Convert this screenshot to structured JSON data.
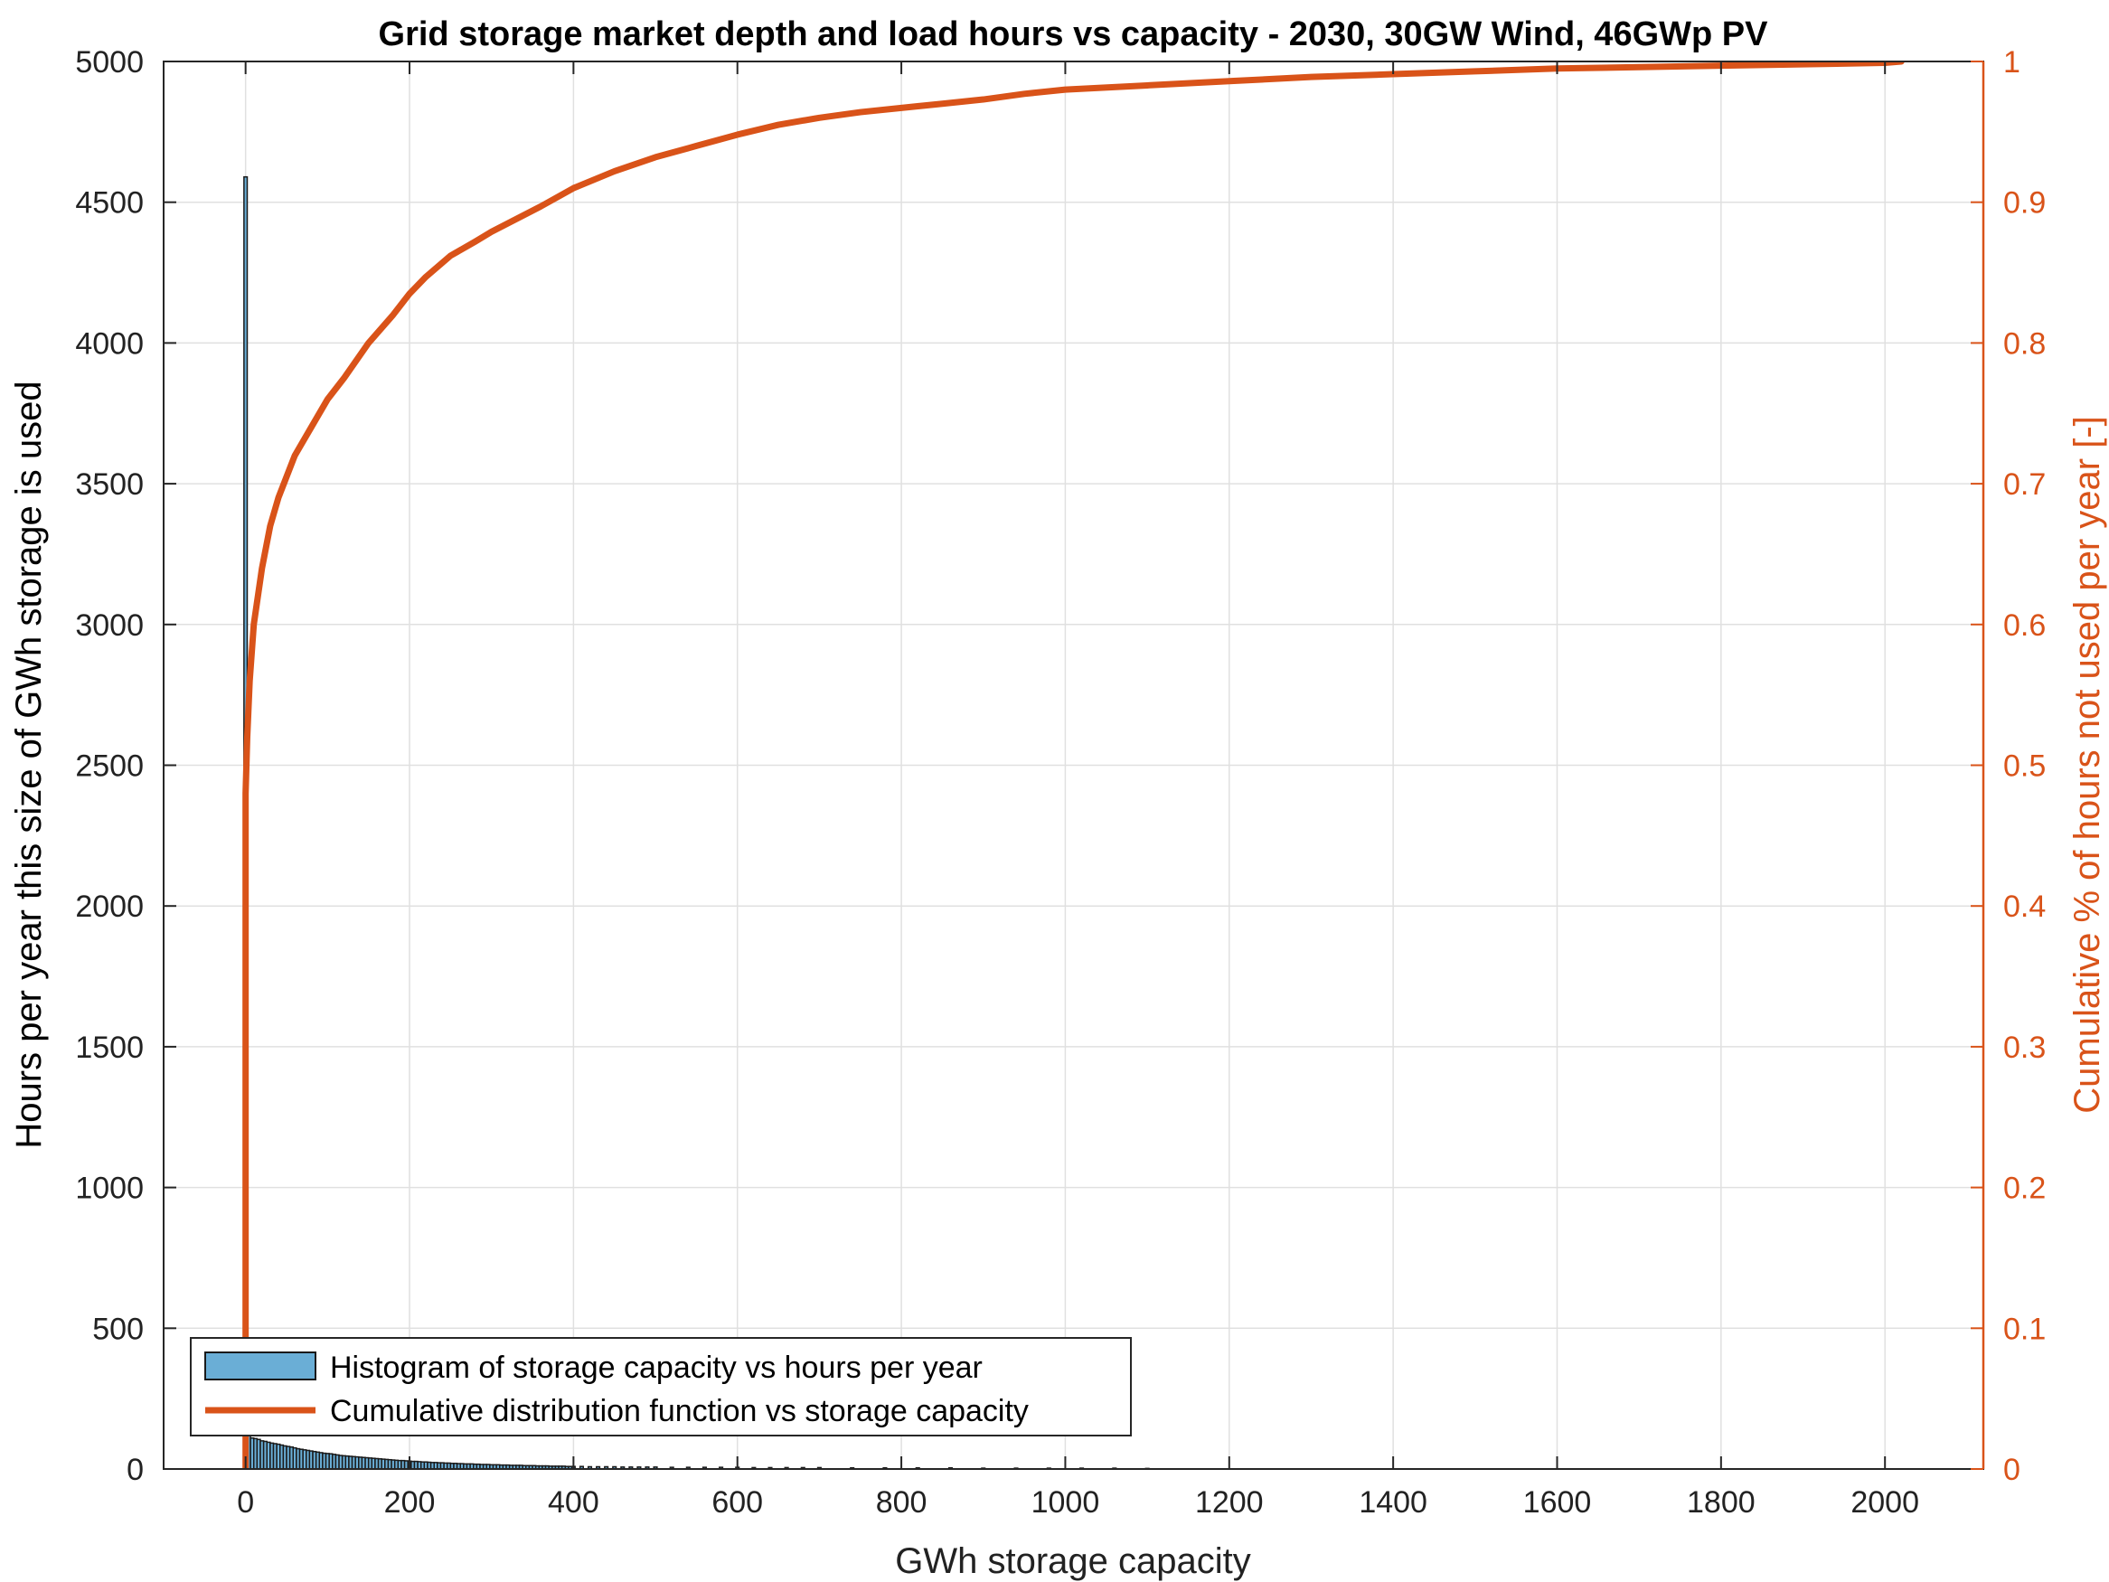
{
  "chart_data": {
    "type": "bar",
    "title": "Grid storage market depth and load hours vs capacity - 2030, 30GW Wind, 46GWp PV",
    "xlabel": "GWh storage capacity",
    "ylabel": "Hours per year this size of GWh storage is used",
    "ylabel_right": "Cumulative % of hours not used per year [-]",
    "xlim": [
      -100,
      2120
    ],
    "ylim": [
      0,
      5000
    ],
    "ylim_right": [
      0,
      1
    ],
    "grid": true,
    "legend_position": "bottom-left",
    "x_ticks": [
      "0",
      "200",
      "400",
      "600",
      "800",
      "1000",
      "1200",
      "1400",
      "1600",
      "1800",
      "2000"
    ],
    "x_tick_values": [
      0,
      200,
      400,
      600,
      800,
      1000,
      1200,
      1400,
      1600,
      1800,
      2000
    ],
    "y_ticks": [
      "0",
      "500",
      "1000",
      "1500",
      "2000",
      "2500",
      "3000",
      "3500",
      "4000",
      "4500",
      "5000"
    ],
    "y_tick_values": [
      0,
      500,
      1000,
      1500,
      2000,
      2500,
      3000,
      3500,
      4000,
      4500,
      5000
    ],
    "y_ticks_right": [
      "0",
      "0.1",
      "0.2",
      "0.3",
      "0.4",
      "0.5",
      "0.6",
      "0.7",
      "0.8",
      "0.9",
      "1"
    ],
    "y_tick_values_right": [
      0,
      0.1,
      0.2,
      0.3,
      0.4,
      0.5,
      0.6,
      0.7,
      0.8,
      0.9,
      1
    ],
    "colors": {
      "histogram_fill": "#6aaed6",
      "histogram_edge": "#1a1a1a",
      "cdf_line": "#d95319",
      "grid": "#e0e0e0",
      "axis": "#262626"
    },
    "series": [
      {
        "name": "Histogram of storage capacity vs hours per year",
        "type": "histogram",
        "bin_width": 4,
        "x": [
          0,
          4,
          8,
          12,
          16,
          20,
          24,
          28,
          32,
          36,
          40,
          44,
          48,
          52,
          56,
          60,
          64,
          68,
          72,
          76,
          80,
          84,
          88,
          92,
          96,
          100,
          104,
          108,
          112,
          116,
          120,
          124,
          128,
          132,
          136,
          140,
          144,
          148,
          152,
          156,
          160,
          164,
          168,
          172,
          176,
          180,
          184,
          188,
          192,
          196,
          200,
          204,
          208,
          212,
          216,
          220,
          224,
          228,
          232,
          236,
          240,
          244,
          248,
          252,
          256,
          260,
          264,
          268,
          272,
          276,
          280,
          284,
          288,
          292,
          296,
          300,
          304,
          308,
          312,
          316,
          320,
          324,
          328,
          332,
          336,
          340,
          344,
          348,
          352,
          356,
          360,
          364,
          368,
          372,
          376,
          380,
          384,
          388,
          392,
          396,
          400,
          410,
          420,
          430,
          440,
          450,
          460,
          470,
          480,
          490,
          500,
          520,
          540,
          560,
          580,
          600,
          620,
          640,
          660,
          680,
          700,
          740,
          780,
          820,
          860,
          900,
          940,
          980,
          1020,
          1060,
          1100
        ],
        "values": [
          4590,
          120,
          110,
          108,
          105,
          100,
          98,
          95,
          92,
          90,
          88,
          85,
          82,
          80,
          78,
          75,
          72,
          70,
          68,
          66,
          64,
          62,
          60,
          58,
          56,
          55,
          54,
          52,
          50,
          48,
          47,
          46,
          45,
          44,
          43,
          42,
          41,
          40,
          39,
          38,
          37,
          36,
          35,
          34,
          33,
          32,
          31,
          30,
          30,
          29,
          28,
          27,
          27,
          26,
          25,
          25,
          24,
          23,
          23,
          22,
          22,
          21,
          21,
          20,
          20,
          19,
          19,
          18,
          18,
          18,
          17,
          17,
          16,
          16,
          16,
          15,
          15,
          15,
          14,
          14,
          14,
          13,
          13,
          13,
          13,
          12,
          12,
          12,
          12,
          11,
          11,
          11,
          11,
          10,
          10,
          10,
          10,
          10,
          9,
          9,
          9,
          9,
          8,
          8,
          8,
          8,
          7,
          7,
          7,
          7,
          7,
          6,
          6,
          6,
          6,
          6,
          5,
          5,
          5,
          5,
          5,
          4,
          4,
          4,
          4,
          3,
          3,
          3,
          3,
          3,
          2
        ]
      },
      {
        "name": "Cumulative distribution function vs storage capacity",
        "type": "line",
        "x": [
          0,
          0,
          2,
          5,
          10,
          20,
          30,
          40,
          50,
          60,
          70,
          80,
          100,
          120,
          150,
          180,
          200,
          220,
          250,
          280,
          300,
          330,
          360,
          400,
          450,
          500,
          550,
          600,
          650,
          700,
          750,
          800,
          850,
          900,
          950,
          1000,
          1100,
          1200,
          1300,
          1400,
          1500,
          1600,
          1700,
          1800,
          1900,
          2000,
          2020
        ],
        "values": [
          0,
          0.48,
          0.52,
          0.56,
          0.6,
          0.64,
          0.67,
          0.69,
          0.705,
          0.72,
          0.73,
          0.74,
          0.76,
          0.775,
          0.8,
          0.82,
          0.835,
          0.847,
          0.862,
          0.872,
          0.879,
          0.888,
          0.897,
          0.91,
          0.922,
          0.932,
          0.94,
          0.948,
          0.955,
          0.96,
          0.964,
          0.967,
          0.97,
          0.973,
          0.977,
          0.98,
          0.983,
          0.986,
          0.989,
          0.991,
          0.993,
          0.995,
          0.996,
          0.997,
          0.998,
          0.999,
          1
        ]
      }
    ]
  }
}
